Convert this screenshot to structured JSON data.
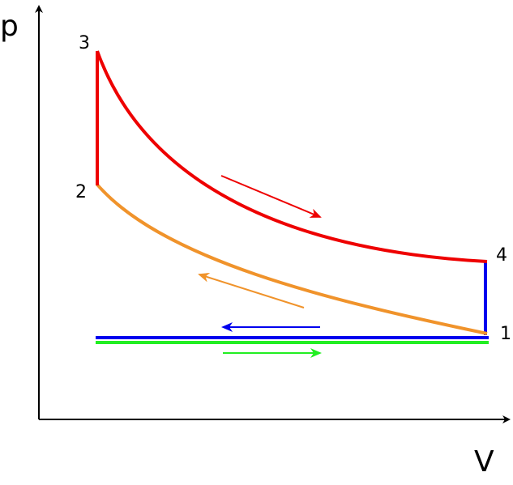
{
  "axes": {
    "y_label": "p",
    "x_label": "V"
  },
  "nodes": [
    {
      "label": "1"
    },
    {
      "label": "2"
    },
    {
      "label": "3"
    },
    {
      "label": "4"
    }
  ]
}
